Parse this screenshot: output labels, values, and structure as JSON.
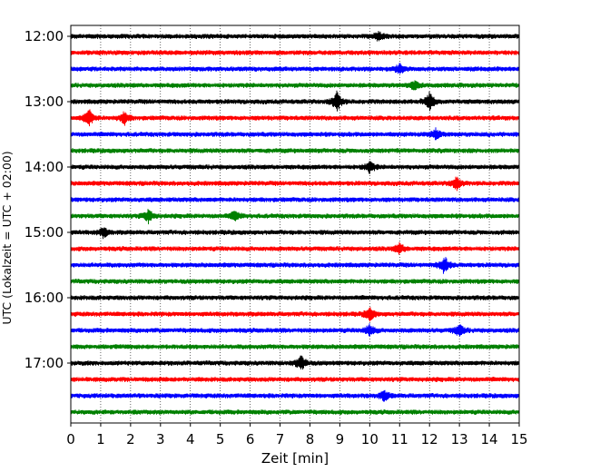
{
  "chart_data": {
    "type": "line",
    "xlabel": "Zeit  [min]",
    "ylabel": "UTC (Lokalzeit = UTC + 02:00)",
    "xlim": [
      0,
      15
    ],
    "x_ticks": [
      0,
      1,
      2,
      3,
      4,
      5,
      6,
      7,
      8,
      9,
      10,
      11,
      12,
      13,
      14,
      15
    ],
    "y_ticks": [
      "12:00",
      "13:00",
      "14:00",
      "15:00",
      "16:00",
      "17:00"
    ],
    "grid": "vertical",
    "trace_start_times": [
      "12:00",
      "12:15",
      "12:30",
      "12:45",
      "13:00",
      "13:15",
      "13:30",
      "13:45",
      "14:00",
      "14:15",
      "14:30",
      "14:45",
      "15:00",
      "15:15",
      "15:30",
      "15:45",
      "16:00",
      "16:15",
      "16:30",
      "16:45",
      "17:00",
      "17:15",
      "17:30",
      "17:45"
    ],
    "trace_colors": [
      "#000000",
      "#ff0000",
      "#0000ff",
      "#008000"
    ],
    "events": [
      {
        "trace": 0,
        "minute": 10.3,
        "amp": 1.0
      },
      {
        "trace": 2,
        "minute": 11.0,
        "amp": 1.0
      },
      {
        "trace": 3,
        "minute": 11.5,
        "amp": 0.8
      },
      {
        "trace": 4,
        "minute": 8.9,
        "amp": 2.0
      },
      {
        "trace": 4,
        "minute": 12.0,
        "amp": 1.8
      },
      {
        "trace": 5,
        "minute": 0.6,
        "amp": 1.8
      },
      {
        "trace": 5,
        "minute": 1.8,
        "amp": 1.2
      },
      {
        "trace": 6,
        "minute": 12.2,
        "amp": 1.0
      },
      {
        "trace": 8,
        "minute": 10.0,
        "amp": 1.2
      },
      {
        "trace": 9,
        "minute": 12.9,
        "amp": 1.3
      },
      {
        "trace": 11,
        "minute": 2.6,
        "amp": 1.3
      },
      {
        "trace": 11,
        "minute": 5.5,
        "amp": 1.0
      },
      {
        "trace": 12,
        "minute": 1.1,
        "amp": 1.0
      },
      {
        "trace": 13,
        "minute": 11.0,
        "amp": 1.0
      },
      {
        "trace": 14,
        "minute": 12.5,
        "amp": 1.8
      },
      {
        "trace": 17,
        "minute": 10.0,
        "amp": 1.3
      },
      {
        "trace": 18,
        "minute": 10.0,
        "amp": 1.2
      },
      {
        "trace": 18,
        "minute": 13.0,
        "amp": 1.2
      },
      {
        "trace": 20,
        "minute": 7.7,
        "amp": 1.6
      },
      {
        "trace": 22,
        "minute": 10.5,
        "amp": 1.0
      }
    ]
  }
}
